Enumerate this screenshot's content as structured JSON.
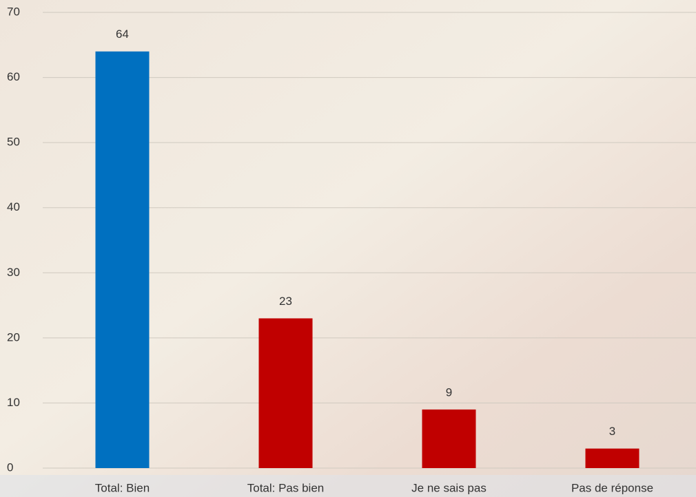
{
  "chart_data": {
    "type": "bar",
    "categories": [
      "Total: Bien",
      "Total: Pas bien",
      "Je ne sais pas",
      "Pas de réponse"
    ],
    "values": [
      64,
      23,
      9,
      3
    ],
    "colors": [
      "#0070c0",
      "#c00000",
      "#c00000",
      "#c00000"
    ],
    "ylim": [
      0,
      70
    ],
    "yticks": [
      0,
      10,
      20,
      30,
      40,
      50,
      60,
      70
    ],
    "grid": true
  }
}
